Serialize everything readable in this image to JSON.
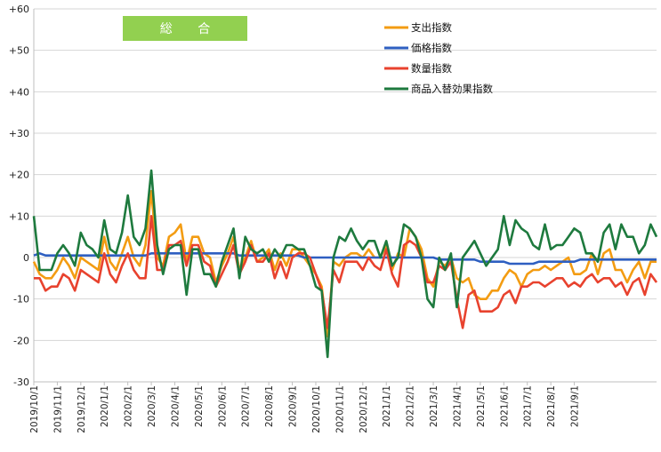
{
  "chart_data": {
    "type": "line",
    "title": "総 合",
    "title_box_color": "#92d050",
    "ylim": [
      -30,
      60
    ],
    "y_ticks": [
      "+60",
      "+50",
      "+40",
      "+30",
      "+20",
      "+10",
      "0",
      "-10",
      "-20",
      "-30"
    ],
    "y_tick_values": [
      60,
      50,
      40,
      30,
      20,
      10,
      0,
      -10,
      -20,
      -30
    ],
    "x_tick_labels": [
      "2019/10/1",
      "2019/11/1",
      "2019/12/1",
      "2020/1/1",
      "2020/2/1",
      "2020/3/1",
      "2020/4/1",
      "2020/5/1",
      "2020/6/1",
      "2020/7/1",
      "2020/8/1",
      "2020/9/1",
      "2020/10/1",
      "2020/11/1",
      "2020/12/1",
      "2021/1/1",
      "2021/2/1",
      "2021/3/1",
      "2021/4/1",
      "2021/5/1",
      "2021/6/1",
      "2021/7/1",
      "2021/8/1",
      "2021/9/1"
    ],
    "x_tick_indices": [
      0,
      4,
      8,
      12,
      16,
      20,
      24,
      28,
      32,
      36,
      40,
      44,
      48,
      52,
      56,
      60,
      64,
      68,
      72,
      76,
      80,
      84,
      88,
      92
    ],
    "legend_position": "top-center",
    "grid": true,
    "series": [
      {
        "name": "支出指数",
        "color": "#f39c12",
        "values": [
          -1,
          -4,
          -5,
          -5,
          -3,
          0,
          -2,
          -5,
          0,
          -1,
          -2,
          -3,
          5,
          -1,
          -3,
          1,
          5,
          0,
          -2,
          3,
          16,
          0,
          -2,
          5,
          6,
          8,
          -1,
          5,
          5,
          1,
          0,
          -6,
          -2,
          1,
          5,
          -3,
          0,
          4,
          -1,
          0,
          2,
          -3,
          1,
          -2,
          2,
          2,
          0,
          -2,
          -4,
          -7,
          -19,
          -1,
          -2,
          0,
          1,
          1,
          0,
          2,
          0,
          0,
          3,
          -3,
          1,
          0,
          7,
          5,
          2,
          -5,
          -7,
          -1,
          -2,
          0,
          -5,
          -6,
          -5,
          -9,
          -10,
          -10,
          -8,
          -8,
          -5,
          -3,
          -4,
          -7,
          -4,
          -3,
          -3,
          -2,
          -3,
          -2,
          -1,
          0,
          -4,
          -4,
          -3,
          1,
          -4,
          1,
          2,
          -3,
          -3,
          -6,
          -3,
          -1,
          -5,
          -1,
          -1
        ]
      },
      {
        "name": "価格指数",
        "color": "#2e5fc1",
        "values": [
          0.5,
          1,
          0.5,
          0.5,
          0.5,
          0.5,
          0.5,
          0.5,
          0.5,
          0.5,
          0.5,
          0.5,
          0.5,
          0.5,
          0.5,
          0.5,
          0.5,
          0.5,
          0.5,
          0.5,
          1,
          1,
          1,
          1,
          1,
          1,
          1,
          1,
          1,
          1,
          1,
          1,
          1,
          1,
          1,
          0.5,
          0.5,
          0.5,
          0.5,
          0.5,
          0.5,
          0.5,
          0.5,
          0.5,
          0.5,
          0.5,
          0,
          0,
          0,
          0,
          0,
          0,
          0,
          0,
          0,
          0,
          0,
          0,
          0,
          0,
          0,
          0,
          0,
          0,
          0,
          0,
          0,
          0,
          0,
          -0.5,
          -0.5,
          -0.5,
          -0.5,
          -0.5,
          -0.5,
          -0.5,
          -1,
          -1,
          -1,
          -1,
          -1,
          -1.5,
          -1.5,
          -1.5,
          -1.5,
          -1.5,
          -1,
          -1,
          -1,
          -1,
          -1,
          -1,
          -1,
          -0.5,
          -0.5,
          -0.5,
          -0.5,
          -0.5,
          -0.5,
          -0.5,
          -0.5,
          -0.5,
          -0.5,
          -0.5,
          -0.5,
          -0.5,
          -0.5
        ]
      },
      {
        "name": "数量指数",
        "color": "#e8422e",
        "values": [
          -5,
          -5,
          -8,
          -7,
          -7,
          -4,
          -5,
          -8,
          -3,
          -4,
          -5,
          -6,
          1,
          -4,
          -6,
          -2,
          1,
          -3,
          -5,
          -5,
          10,
          -3,
          -3,
          3,
          3,
          4,
          -2,
          3,
          3,
          -1,
          -2,
          -7,
          -4,
          -1,
          3,
          -4,
          -1,
          3,
          -1,
          -1,
          1,
          -5,
          -1,
          -5,
          0,
          1,
          1,
          0,
          -4,
          -8,
          -17,
          -3,
          -6,
          -1,
          -1,
          -1,
          -3,
          0,
          -2,
          -3,
          2,
          -4,
          -7,
          3,
          4,
          3,
          0,
          -6,
          -6,
          -2,
          -3,
          -1,
          -10,
          -17,
          -9,
          -8,
          -13,
          -13,
          -13,
          -12,
          -9,
          -8,
          -11,
          -7,
          -7,
          -6,
          -6,
          -7,
          -6,
          -5,
          -5,
          -7,
          -6,
          -7,
          -5,
          -4,
          -6,
          -5,
          -5,
          -7,
          -6,
          -9,
          -6,
          -5,
          -9,
          -4,
          -6
        ]
      },
      {
        "name": "商品入替効果指数",
        "color": "#1e7a3e",
        "values": [
          10,
          -3,
          -3,
          -3,
          1,
          3,
          1,
          -2,
          6,
          3,
          2,
          0,
          9,
          2,
          1,
          6,
          15,
          5,
          3,
          7,
          21,
          3,
          -4,
          2,
          3,
          3,
          -9,
          2,
          2,
          -4,
          -4,
          -7,
          -1,
          3,
          7,
          -5,
          5,
          2,
          1,
          2,
          -1,
          2,
          0,
          3,
          3,
          2,
          2,
          -2,
          -7,
          -8,
          -24,
          0,
          5,
          4,
          7,
          4,
          2,
          4,
          4,
          0,
          4,
          -2,
          0,
          8,
          7,
          5,
          0,
          -10,
          -12,
          0,
          -3,
          1,
          -12,
          0,
          2,
          4,
          1,
          -2,
          0,
          2,
          10,
          3,
          9,
          7,
          6,
          3,
          2,
          8,
          2,
          3,
          3,
          5,
          7,
          6,
          1,
          1,
          -1,
          6,
          8,
          2,
          8,
          5,
          5,
          1,
          3,
          8,
          5
        ]
      }
    ]
  }
}
